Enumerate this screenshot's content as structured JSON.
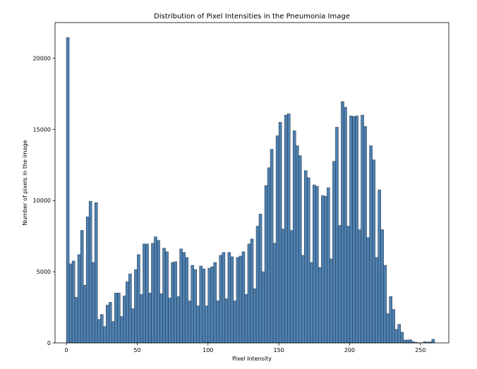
{
  "chart_data": {
    "type": "bar",
    "title": "Distribution of Pixel Intensities in the Pneumonia Image",
    "xlabel": "Pixel Intensity",
    "ylabel": "Number of pixels in the image",
    "xlim": [
      -8,
      270
    ],
    "ylim": [
      0,
      22500
    ],
    "x_ticks": [
      0,
      50,
      100,
      150,
      200,
      250
    ],
    "y_ticks": [
      0,
      5000,
      10000,
      15000,
      20000
    ],
    "bar_color": "#4f81b0",
    "bar_edge": "#1c2f45",
    "grid": false,
    "bins": [
      [
        0,
        21450
      ],
      [
        2,
        5550
      ],
      [
        4,
        5750
      ],
      [
        6,
        3200
      ],
      [
        8,
        6200
      ],
      [
        10,
        7900
      ],
      [
        12,
        4050
      ],
      [
        14,
        8850
      ],
      [
        16,
        9950
      ],
      [
        18,
        5650
      ],
      [
        20,
        9850
      ],
      [
        22,
        1650
      ],
      [
        24,
        2000
      ],
      [
        26,
        1150
      ],
      [
        28,
        2650
      ],
      [
        30,
        2850
      ],
      [
        32,
        1500
      ],
      [
        34,
        3500
      ],
      [
        36,
        3500
      ],
      [
        38,
        1850
      ],
      [
        40,
        3300
      ],
      [
        42,
        4300
      ],
      [
        44,
        4850
      ],
      [
        46,
        2400
      ],
      [
        48,
        5150
      ],
      [
        50,
        6200
      ],
      [
        52,
        3400
      ],
      [
        54,
        6950
      ],
      [
        56,
        6950
      ],
      [
        58,
        3500
      ],
      [
        60,
        7000
      ],
      [
        62,
        7450
      ],
      [
        64,
        7200
      ],
      [
        66,
        3450
      ],
      [
        68,
        6650
      ],
      [
        70,
        6400
      ],
      [
        72,
        3150
      ],
      [
        74,
        5650
      ],
      [
        76,
        5700
      ],
      [
        78,
        3250
      ],
      [
        80,
        6600
      ],
      [
        82,
        6350
      ],
      [
        84,
        6000
      ],
      [
        86,
        2950
      ],
      [
        88,
        5450
      ],
      [
        90,
        5150
      ],
      [
        92,
        2600
      ],
      [
        94,
        5400
      ],
      [
        96,
        5200
      ],
      [
        98,
        2600
      ],
      [
        100,
        5250
      ],
      [
        102,
        5350
      ],
      [
        104,
        5650
      ],
      [
        106,
        2950
      ],
      [
        108,
        6150
      ],
      [
        110,
        6350
      ],
      [
        112,
        3100
      ],
      [
        114,
        6350
      ],
      [
        116,
        6050
      ],
      [
        118,
        2950
      ],
      [
        120,
        6000
      ],
      [
        122,
        6100
      ],
      [
        124,
        6400
      ],
      [
        126,
        3400
      ],
      [
        128,
        6950
      ],
      [
        130,
        7300
      ],
      [
        132,
        3800
      ],
      [
        134,
        8200
      ],
      [
        136,
        9050
      ],
      [
        138,
        5000
      ],
      [
        140,
        11050
      ],
      [
        142,
        12300
      ],
      [
        144,
        13600
      ],
      [
        146,
        7000
      ],
      [
        148,
        14550
      ],
      [
        150,
        15500
      ],
      [
        152,
        8000
      ],
      [
        154,
        16000
      ],
      [
        156,
        16100
      ],
      [
        158,
        7900
      ],
      [
        160,
        14900
      ],
      [
        162,
        13850
      ],
      [
        164,
        13150
      ],
      [
        166,
        6150
      ],
      [
        168,
        12100
      ],
      [
        170,
        11600
      ],
      [
        172,
        5650
      ],
      [
        174,
        11100
      ],
      [
        176,
        11000
      ],
      [
        178,
        5300
      ],
      [
        180,
        10350
      ],
      [
        182,
        10300
      ],
      [
        184,
        10900
      ],
      [
        186,
        5900
      ],
      [
        188,
        12750
      ],
      [
        190,
        15150
      ],
      [
        192,
        8250
      ],
      [
        194,
        16950
      ],
      [
        196,
        16550
      ],
      [
        198,
        8200
      ],
      [
        200,
        15950
      ],
      [
        202,
        15900
      ],
      [
        204,
        15950
      ],
      [
        206,
        7950
      ],
      [
        208,
        16000
      ],
      [
        210,
        15200
      ],
      [
        212,
        7400
      ],
      [
        214,
        13850
      ],
      [
        216,
        12850
      ],
      [
        218,
        6000
      ],
      [
        220,
        10750
      ],
      [
        222,
        7950
      ],
      [
        224,
        5450
      ],
      [
        226,
        2050
      ],
      [
        228,
        3250
      ],
      [
        230,
        2350
      ],
      [
        232,
        950
      ],
      [
        234,
        1300
      ],
      [
        236,
        750
      ],
      [
        238,
        200
      ],
      [
        240,
        200
      ],
      [
        242,
        220
      ],
      [
        244,
        80
      ],
      [
        246,
        40
      ],
      [
        248,
        20
      ],
      [
        250,
        10
      ],
      [
        252,
        80
      ],
      [
        254,
        60
      ],
      [
        256,
        70
      ],
      [
        258,
        250
      ]
    ]
  }
}
